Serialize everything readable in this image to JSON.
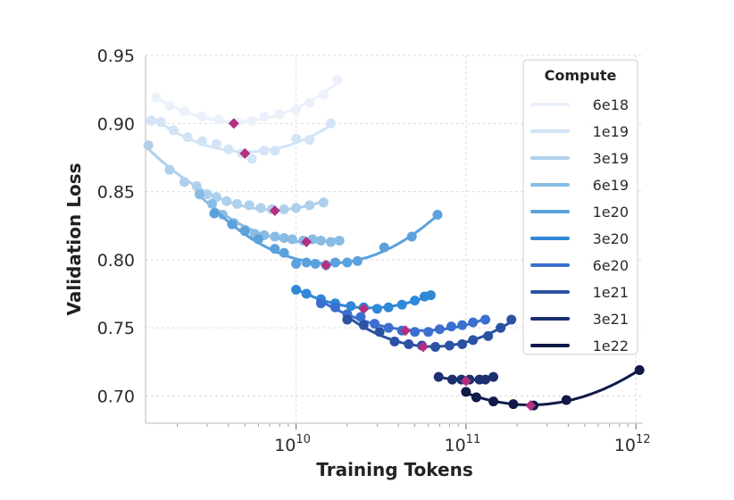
{
  "chart_data": {
    "type": "scatter",
    "xlabel": "Training Tokens",
    "ylabel": "Validation Loss",
    "xscale": "log",
    "xlim": [
      1300000000.0,
      1100000000000.0
    ],
    "ylim": [
      0.68,
      0.95
    ],
    "yticks": [
      "0.70",
      "0.75",
      "0.80",
      "0.85",
      "0.90",
      "0.95"
    ],
    "xticks": [
      {
        "base": "10",
        "exp": "10",
        "value": 10000000000.0
      },
      {
        "base": "10",
        "exp": "11",
        "value": 100000000000.0
      },
      {
        "base": "10",
        "exp": "12",
        "value": 1000000000000.0
      }
    ],
    "grid": true,
    "legend": {
      "title": "Compute",
      "position": "top-right"
    },
    "optimum_color": "#b3307f",
    "series": [
      {
        "name": "6e18",
        "color": "#eaf1fb",
        "points": [
          [
            1500000000.0,
            0.919
          ],
          [
            1800000000.0,
            0.913
          ],
          [
            2200000000.0,
            0.909
          ],
          [
            2800000000.0,
            0.905
          ],
          [
            3500000000.0,
            0.903
          ],
          [
            4500000000.0,
            0.901
          ],
          [
            5500000000.0,
            0.902
          ],
          [
            6500000000.0,
            0.905
          ],
          [
            8000000000.0,
            0.907
          ],
          [
            10000000000.0,
            0.91
          ],
          [
            12000000000.0,
            0.915
          ],
          [
            14500000000.0,
            0.921
          ],
          [
            17500000000.0,
            0.932
          ]
        ],
        "optimum": [
          4300000000.0,
          0.9
        ]
      },
      {
        "name": "1e19",
        "color": "#d2e4f5",
        "points": [
          [
            1400000000.0,
            0.902
          ],
          [
            1600000000.0,
            0.901
          ],
          [
            1900000000.0,
            0.895
          ],
          [
            2300000000.0,
            0.89
          ],
          [
            2800000000.0,
            0.887
          ],
          [
            3400000000.0,
            0.885
          ],
          [
            4000000000.0,
            0.881
          ],
          [
            4800000000.0,
            0.878
          ],
          [
            5500000000.0,
            0.874
          ],
          [
            6500000000.0,
            0.88
          ],
          [
            7500000000.0,
            0.88
          ],
          [
            10000000000.0,
            0.889
          ],
          [
            12000000000.0,
            0.888
          ],
          [
            16000000000.0,
            0.9
          ]
        ],
        "optimum": [
          5000000000.0,
          0.878
        ]
      },
      {
        "name": "3e19",
        "color": "#aed0ec",
        "points": [
          [
            1350000000.0,
            0.884
          ],
          [
            1800000000.0,
            0.866
          ],
          [
            2200000000.0,
            0.857
          ],
          [
            2600000000.0,
            0.854
          ],
          [
            3000000000.0,
            0.848
          ],
          [
            3400000000.0,
            0.846
          ],
          [
            3900000000.0,
            0.843
          ],
          [
            4500000000.0,
            0.841
          ],
          [
            5300000000.0,
            0.84
          ],
          [
            6200000000.0,
            0.838
          ],
          [
            7200000000.0,
            0.837
          ],
          [
            8500000000.0,
            0.837
          ],
          [
            10000000000.0,
            0.838
          ],
          [
            12000000000.0,
            0.84
          ],
          [
            14500000000.0,
            0.842
          ]
        ],
        "optimum": [
          7500000000.0,
          0.836
        ]
      },
      {
        "name": "6e19",
        "color": "#88bce4",
        "points": [
          [
            2700000000.0,
            0.848
          ],
          [
            3200000000.0,
            0.841
          ],
          [
            3700000000.0,
            0.833
          ],
          [
            4300000000.0,
            0.827
          ],
          [
            5000000000.0,
            0.822
          ],
          [
            5700000000.0,
            0.819
          ],
          [
            6500000000.0,
            0.818
          ],
          [
            7500000000.0,
            0.817
          ],
          [
            8500000000.0,
            0.816
          ],
          [
            9500000000.0,
            0.815
          ],
          [
            11000000000.0,
            0.814
          ],
          [
            12500000000.0,
            0.815
          ],
          [
            14000000000.0,
            0.814
          ],
          [
            16000000000.0,
            0.813
          ],
          [
            18000000000.0,
            0.814
          ]
        ],
        "optimum": [
          11500000000.0,
          0.813
        ]
      },
      {
        "name": "1e20",
        "color": "#5ba1dc",
        "points": [
          [
            3300000000.0,
            0.834
          ],
          [
            4200000000.0,
            0.826
          ],
          [
            5000000000.0,
            0.821
          ],
          [
            6000000000.0,
            0.815
          ],
          [
            7500000000.0,
            0.808
          ],
          [
            8500000000.0,
            0.805
          ],
          [
            10000000000.0,
            0.797
          ],
          [
            11500000000.0,
            0.798
          ],
          [
            13000000000.0,
            0.797
          ],
          [
            15000000000.0,
            0.796
          ],
          [
            17000000000.0,
            0.798
          ],
          [
            20000000000.0,
            0.798
          ],
          [
            23000000000.0,
            0.799
          ],
          [
            33000000000.0,
            0.809
          ],
          [
            48000000000.0,
            0.817
          ],
          [
            68000000000.0,
            0.833
          ]
        ],
        "optimum": [
          15000000000.0,
          0.796
        ]
      },
      {
        "name": "3e20",
        "color": "#2f88d8",
        "points": [
          [
            10000000000.0,
            0.778
          ],
          [
            11500000000.0,
            0.775
          ],
          [
            14000000000.0,
            0.771
          ],
          [
            17000000000.0,
            0.768
          ],
          [
            21000000000.0,
            0.766
          ],
          [
            25000000000.0,
            0.765
          ],
          [
            30000000000.0,
            0.764
          ],
          [
            35000000000.0,
            0.765
          ],
          [
            42000000000.0,
            0.767
          ],
          [
            50000000000.0,
            0.77
          ],
          [
            57000000000.0,
            0.773
          ],
          [
            62000000000.0,
            0.774
          ]
        ],
        "optimum": [
          25000000000.0,
          0.764
        ]
      },
      {
        "name": "6e20",
        "color": "#3b6fd0",
        "points": [
          [
            14000000000.0,
            0.768
          ],
          [
            17000000000.0,
            0.765
          ],
          [
            20000000000.0,
            0.76
          ],
          [
            24000000000.0,
            0.758
          ],
          [
            29000000000.0,
            0.753
          ],
          [
            35000000000.0,
            0.75
          ],
          [
            42000000000.0,
            0.748
          ],
          [
            50000000000.0,
            0.747
          ],
          [
            60000000000.0,
            0.747
          ],
          [
            70000000000.0,
            0.749
          ],
          [
            82000000000.0,
            0.751
          ],
          [
            95000000000.0,
            0.752
          ],
          [
            110000000000.0,
            0.754
          ],
          [
            130000000000.0,
            0.756
          ]
        ],
        "optimum": [
          44000000000.0,
          0.748
        ]
      },
      {
        "name": "1e21",
        "color": "#2b52a3",
        "points": [
          [
            20000000000.0,
            0.756
          ],
          [
            25000000000.0,
            0.752
          ],
          [
            31000000000.0,
            0.747
          ],
          [
            38000000000.0,
            0.74
          ],
          [
            46000000000.0,
            0.738
          ],
          [
            55000000000.0,
            0.737
          ],
          [
            66000000000.0,
            0.736
          ],
          [
            80000000000.0,
            0.737
          ],
          [
            95000000000.0,
            0.738
          ],
          [
            110000000000.0,
            0.741
          ],
          [
            135000000000.0,
            0.744
          ],
          [
            160000000000.0,
            0.75
          ],
          [
            185000000000.0,
            0.756
          ]
        ],
        "optimum": [
          56000000000.0,
          0.736
        ]
      },
      {
        "name": "3e21",
        "color": "#1c2f70",
        "points": [
          [
            69000000000.0,
            0.714
          ],
          [
            83000000000.0,
            0.712
          ],
          [
            94000000000.0,
            0.712
          ],
          [
            105000000000.0,
            0.712
          ],
          [
            120000000000.0,
            0.712
          ],
          [
            130000000000.0,
            0.712
          ],
          [
            145000000000.0,
            0.714
          ]
        ],
        "optimum": [
          100000000000.0,
          0.711
        ]
      },
      {
        "name": "1e22",
        "color": "#0f1a48",
        "points": [
          [
            100000000000.0,
            0.703
          ],
          [
            115000000000.0,
            0.699
          ],
          [
            145000000000.0,
            0.696
          ],
          [
            190000000000.0,
            0.694
          ],
          [
            250000000000.0,
            0.693
          ],
          [
            390000000000.0,
            0.697
          ],
          [
            1050000000000.0,
            0.719
          ]
        ],
        "optimum": [
          240000000000.0,
          0.693
        ]
      }
    ]
  }
}
